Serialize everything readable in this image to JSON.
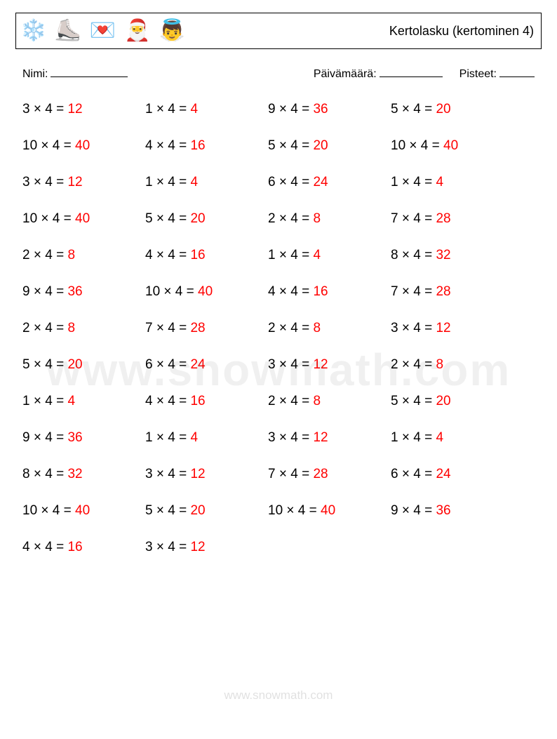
{
  "header": {
    "title": "Kertolasku (kertominen 4)",
    "icons": [
      "❄️",
      "⛸️",
      "💌",
      "🎅",
      "👼"
    ]
  },
  "meta": {
    "name_label": "Nimi:",
    "date_label": "Päivämäärä:",
    "score_label": "Pisteet:",
    "name_blank_width": 110,
    "date_blank_width": 90,
    "score_blank_width": 50
  },
  "answer_color": "#ff0000",
  "text_color": "#000000",
  "problems": [
    {
      "a": 3,
      "b": 4,
      "ans": 12
    },
    {
      "a": 1,
      "b": 4,
      "ans": 4
    },
    {
      "a": 9,
      "b": 4,
      "ans": 36
    },
    {
      "a": 5,
      "b": 4,
      "ans": 20
    },
    {
      "a": 10,
      "b": 4,
      "ans": 40
    },
    {
      "a": 4,
      "b": 4,
      "ans": 16
    },
    {
      "a": 5,
      "b": 4,
      "ans": 20
    },
    {
      "a": 10,
      "b": 4,
      "ans": 40
    },
    {
      "a": 3,
      "b": 4,
      "ans": 12
    },
    {
      "a": 1,
      "b": 4,
      "ans": 4
    },
    {
      "a": 6,
      "b": 4,
      "ans": 24
    },
    {
      "a": 1,
      "b": 4,
      "ans": 4
    },
    {
      "a": 10,
      "b": 4,
      "ans": 40
    },
    {
      "a": 5,
      "b": 4,
      "ans": 20
    },
    {
      "a": 2,
      "b": 4,
      "ans": 8
    },
    {
      "a": 7,
      "b": 4,
      "ans": 28
    },
    {
      "a": 2,
      "b": 4,
      "ans": 8
    },
    {
      "a": 4,
      "b": 4,
      "ans": 16
    },
    {
      "a": 1,
      "b": 4,
      "ans": 4
    },
    {
      "a": 8,
      "b": 4,
      "ans": 32
    },
    {
      "a": 9,
      "b": 4,
      "ans": 36
    },
    {
      "a": 10,
      "b": 4,
      "ans": 40
    },
    {
      "a": 4,
      "b": 4,
      "ans": 16
    },
    {
      "a": 7,
      "b": 4,
      "ans": 28
    },
    {
      "a": 2,
      "b": 4,
      "ans": 8
    },
    {
      "a": 7,
      "b": 4,
      "ans": 28
    },
    {
      "a": 2,
      "b": 4,
      "ans": 8
    },
    {
      "a": 3,
      "b": 4,
      "ans": 12
    },
    {
      "a": 5,
      "b": 4,
      "ans": 20
    },
    {
      "a": 6,
      "b": 4,
      "ans": 24
    },
    {
      "a": 3,
      "b": 4,
      "ans": 12
    },
    {
      "a": 2,
      "b": 4,
      "ans": 8
    },
    {
      "a": 1,
      "b": 4,
      "ans": 4
    },
    {
      "a": 4,
      "b": 4,
      "ans": 16
    },
    {
      "a": 2,
      "b": 4,
      "ans": 8
    },
    {
      "a": 5,
      "b": 4,
      "ans": 20
    },
    {
      "a": 9,
      "b": 4,
      "ans": 36
    },
    {
      "a": 1,
      "b": 4,
      "ans": 4
    },
    {
      "a": 3,
      "b": 4,
      "ans": 12
    },
    {
      "a": 1,
      "b": 4,
      "ans": 4
    },
    {
      "a": 8,
      "b": 4,
      "ans": 32
    },
    {
      "a": 3,
      "b": 4,
      "ans": 12
    },
    {
      "a": 7,
      "b": 4,
      "ans": 28
    },
    {
      "a": 6,
      "b": 4,
      "ans": 24
    },
    {
      "a": 10,
      "b": 4,
      "ans": 40
    },
    {
      "a": 5,
      "b": 4,
      "ans": 20
    },
    {
      "a": 10,
      "b": 4,
      "ans": 40
    },
    {
      "a": 9,
      "b": 4,
      "ans": 36
    },
    {
      "a": 4,
      "b": 4,
      "ans": 16
    },
    {
      "a": 3,
      "b": 4,
      "ans": 12
    }
  ],
  "watermark": "www.snowmath.com",
  "footer": "www.snowmath.com"
}
